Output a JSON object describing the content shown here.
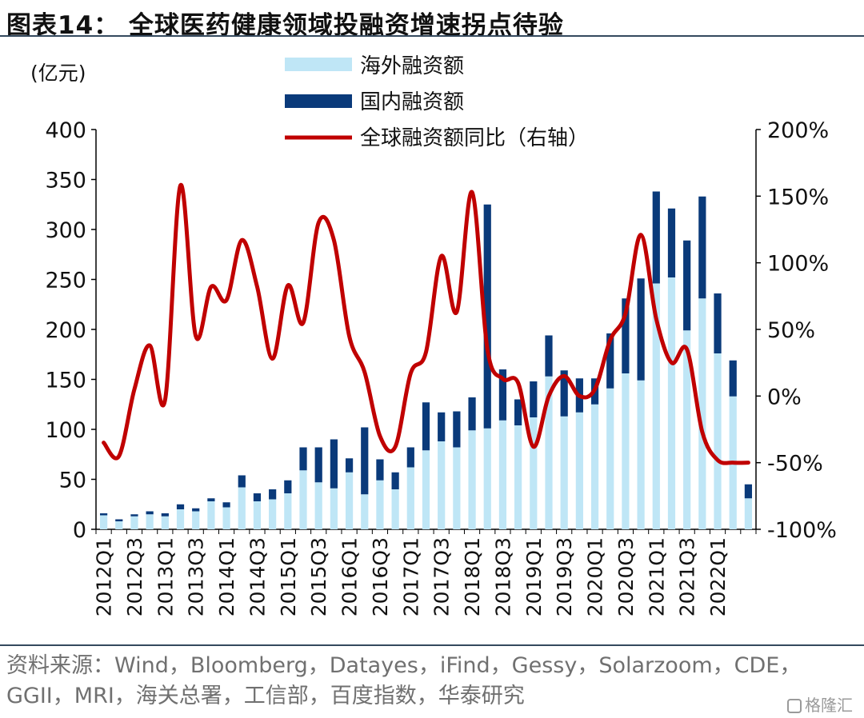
{
  "title": "图表14：  全球医药健康领域投融资增速拐点待验",
  "source": "资料来源：Wind，Bloomberg，Datayes，iFind，Gessy，Solarzoom，CDE，GGII，MRI，海关总署，工信部，百度指数，华泰研究",
  "watermark": "格隆汇",
  "chart_data": {
    "type": "bar",
    "stacked": true,
    "y_unit_label": "(亿元)",
    "ylim": [
      0,
      400
    ],
    "y_ticks": [
      0,
      50,
      100,
      150,
      200,
      250,
      300,
      350,
      400
    ],
    "y2lim": [
      -100,
      200
    ],
    "y2_ticks": [
      "-100%",
      "-50%",
      "0%",
      "50%",
      "100%",
      "150%",
      "200%"
    ],
    "y2_tick_values": [
      -100,
      -50,
      0,
      50,
      100,
      150,
      200
    ],
    "categories": [
      "2012Q1",
      "2012Q2",
      "2012Q3",
      "2012Q4",
      "2013Q1",
      "2013Q2",
      "2013Q3",
      "2013Q4",
      "2014Q1",
      "2014Q2",
      "2014Q3",
      "2014Q4",
      "2015Q1",
      "2015Q2",
      "2015Q3",
      "2015Q4",
      "2016Q1",
      "2016Q2",
      "2016Q3",
      "2016Q4",
      "2017Q1",
      "2017Q2",
      "2017Q3",
      "2017Q4",
      "2018Q1",
      "2018Q2",
      "2018Q3",
      "2018Q4",
      "2019Q1",
      "2019Q2",
      "2019Q3",
      "2019Q4",
      "2020Q1",
      "2020Q2",
      "2020Q3",
      "2020Q4",
      "2021Q1",
      "2021Q2",
      "2021Q3",
      "2021Q4",
      "2022Q1",
      "2022Q2",
      "2022Q3"
    ],
    "x_tick_labels": [
      "2012Q1",
      "2012Q3",
      "2013Q1",
      "2013Q3",
      "2014Q1",
      "2014Q3",
      "2015Q1",
      "2015Q3",
      "2016Q1",
      "2016Q3",
      "2017Q1",
      "2017Q3",
      "2018Q1",
      "2018Q3",
      "2019Q1",
      "2019Q3",
      "2020Q1",
      "2020Q3",
      "2021Q1",
      "2021Q3",
      "2022Q1"
    ],
    "series": [
      {
        "name": "海外融资额",
        "kind": "bar",
        "color": "#bfe6f6",
        "values": [
          14,
          8,
          13,
          15,
          13,
          20,
          18,
          28,
          22,
          42,
          28,
          30,
          36,
          59,
          47,
          41,
          57,
          35,
          49,
          40,
          62,
          79,
          88,
          82,
          99,
          101,
          109,
          104,
          112,
          153,
          113,
          117,
          125,
          141,
          156,
          149,
          246,
          252,
          199,
          231,
          176,
          133,
          31
        ]
      },
      {
        "name": "国内融资额",
        "kind": "bar",
        "color": "#0a3a7a",
        "values": [
          2,
          2,
          2,
          3,
          3,
          5,
          3,
          3,
          5,
          12,
          8,
          10,
          13,
          23,
          35,
          49,
          14,
          67,
          21,
          17,
          20,
          48,
          29,
          36,
          33,
          224,
          51,
          26,
          36,
          41,
          46,
          34,
          26,
          55,
          75,
          102,
          92,
          69,
          90,
          102,
          60,
          36,
          14
        ]
      },
      {
        "name": "全球融资额同比（右轴）",
        "kind": "line",
        "axis": "right",
        "color": "#c00000",
        "values": [
          -35,
          -45,
          5,
          38,
          -3,
          158,
          45,
          82,
          72,
          117,
          82,
          28,
          83,
          55,
          130,
          117,
          45,
          18,
          -30,
          -38,
          17,
          33,
          105,
          63,
          153,
          35,
          13,
          10,
          -38,
          0,
          15,
          0,
          5,
          42,
          62,
          121,
          58,
          25,
          35,
          -27,
          -48,
          -50,
          -50
        ]
      }
    ],
    "legend_position": "top",
    "grid": false
  }
}
